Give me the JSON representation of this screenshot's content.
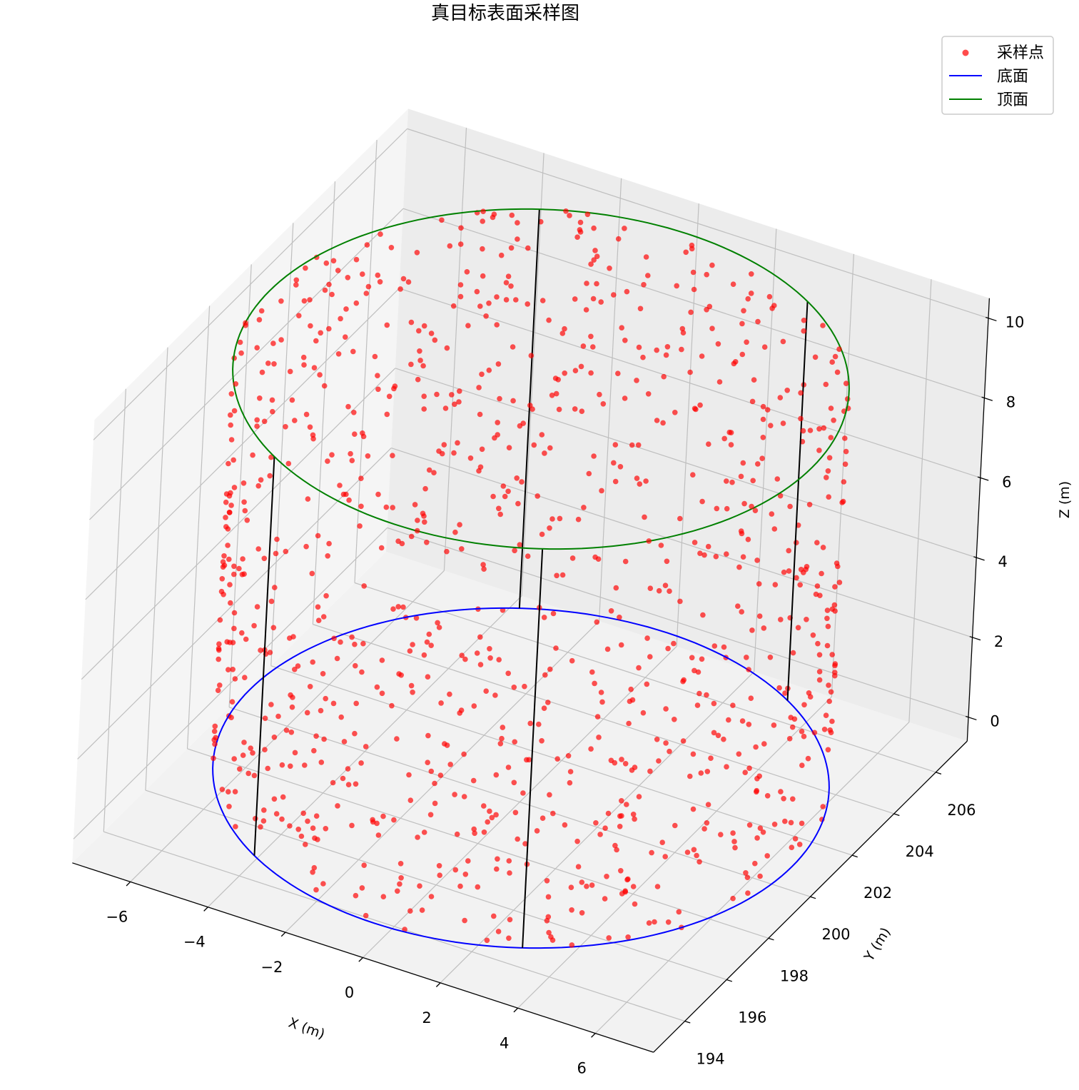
{
  "chart_data": {
    "type": "scatter",
    "projection": "3d",
    "title": "真目标表面采样图",
    "xlabel": "X (m)",
    "ylabel": "Y (m)",
    "zlabel": "Z (m)",
    "xlim": [
      -7.5,
      7.5
    ],
    "ylim": [
      192.5,
      207.5
    ],
    "zlim": [
      -0.6,
      10.5
    ],
    "x_ticks": [
      -6,
      -4,
      -2,
      0,
      2,
      4,
      6
    ],
    "y_ticks": [
      194,
      196,
      198,
      200,
      202,
      204,
      206
    ],
    "z_ticks": [
      0,
      2,
      4,
      6,
      8,
      10
    ],
    "grid": true,
    "legend": "top-right",
    "cylinder": {
      "center_x": 0,
      "center_y": 200,
      "radius": 7,
      "z_bottom": 0,
      "z_top": 10
    },
    "legend_entries": [
      {
        "label": "采样点",
        "marker": "point",
        "color": "#ff0000"
      },
      {
        "label": "底面",
        "marker": "line",
        "color": "#0000ff"
      },
      {
        "label": "顶面",
        "marker": "line",
        "color": "#008000"
      }
    ],
    "series": [
      {
        "name": "采样点",
        "kind": "scatter",
        "color": "#ff0000",
        "count": 1000
      },
      {
        "name": "底面",
        "kind": "line",
        "color": "#0000ff"
      },
      {
        "name": "顶面",
        "kind": "line",
        "color": "#008000"
      }
    ]
  }
}
